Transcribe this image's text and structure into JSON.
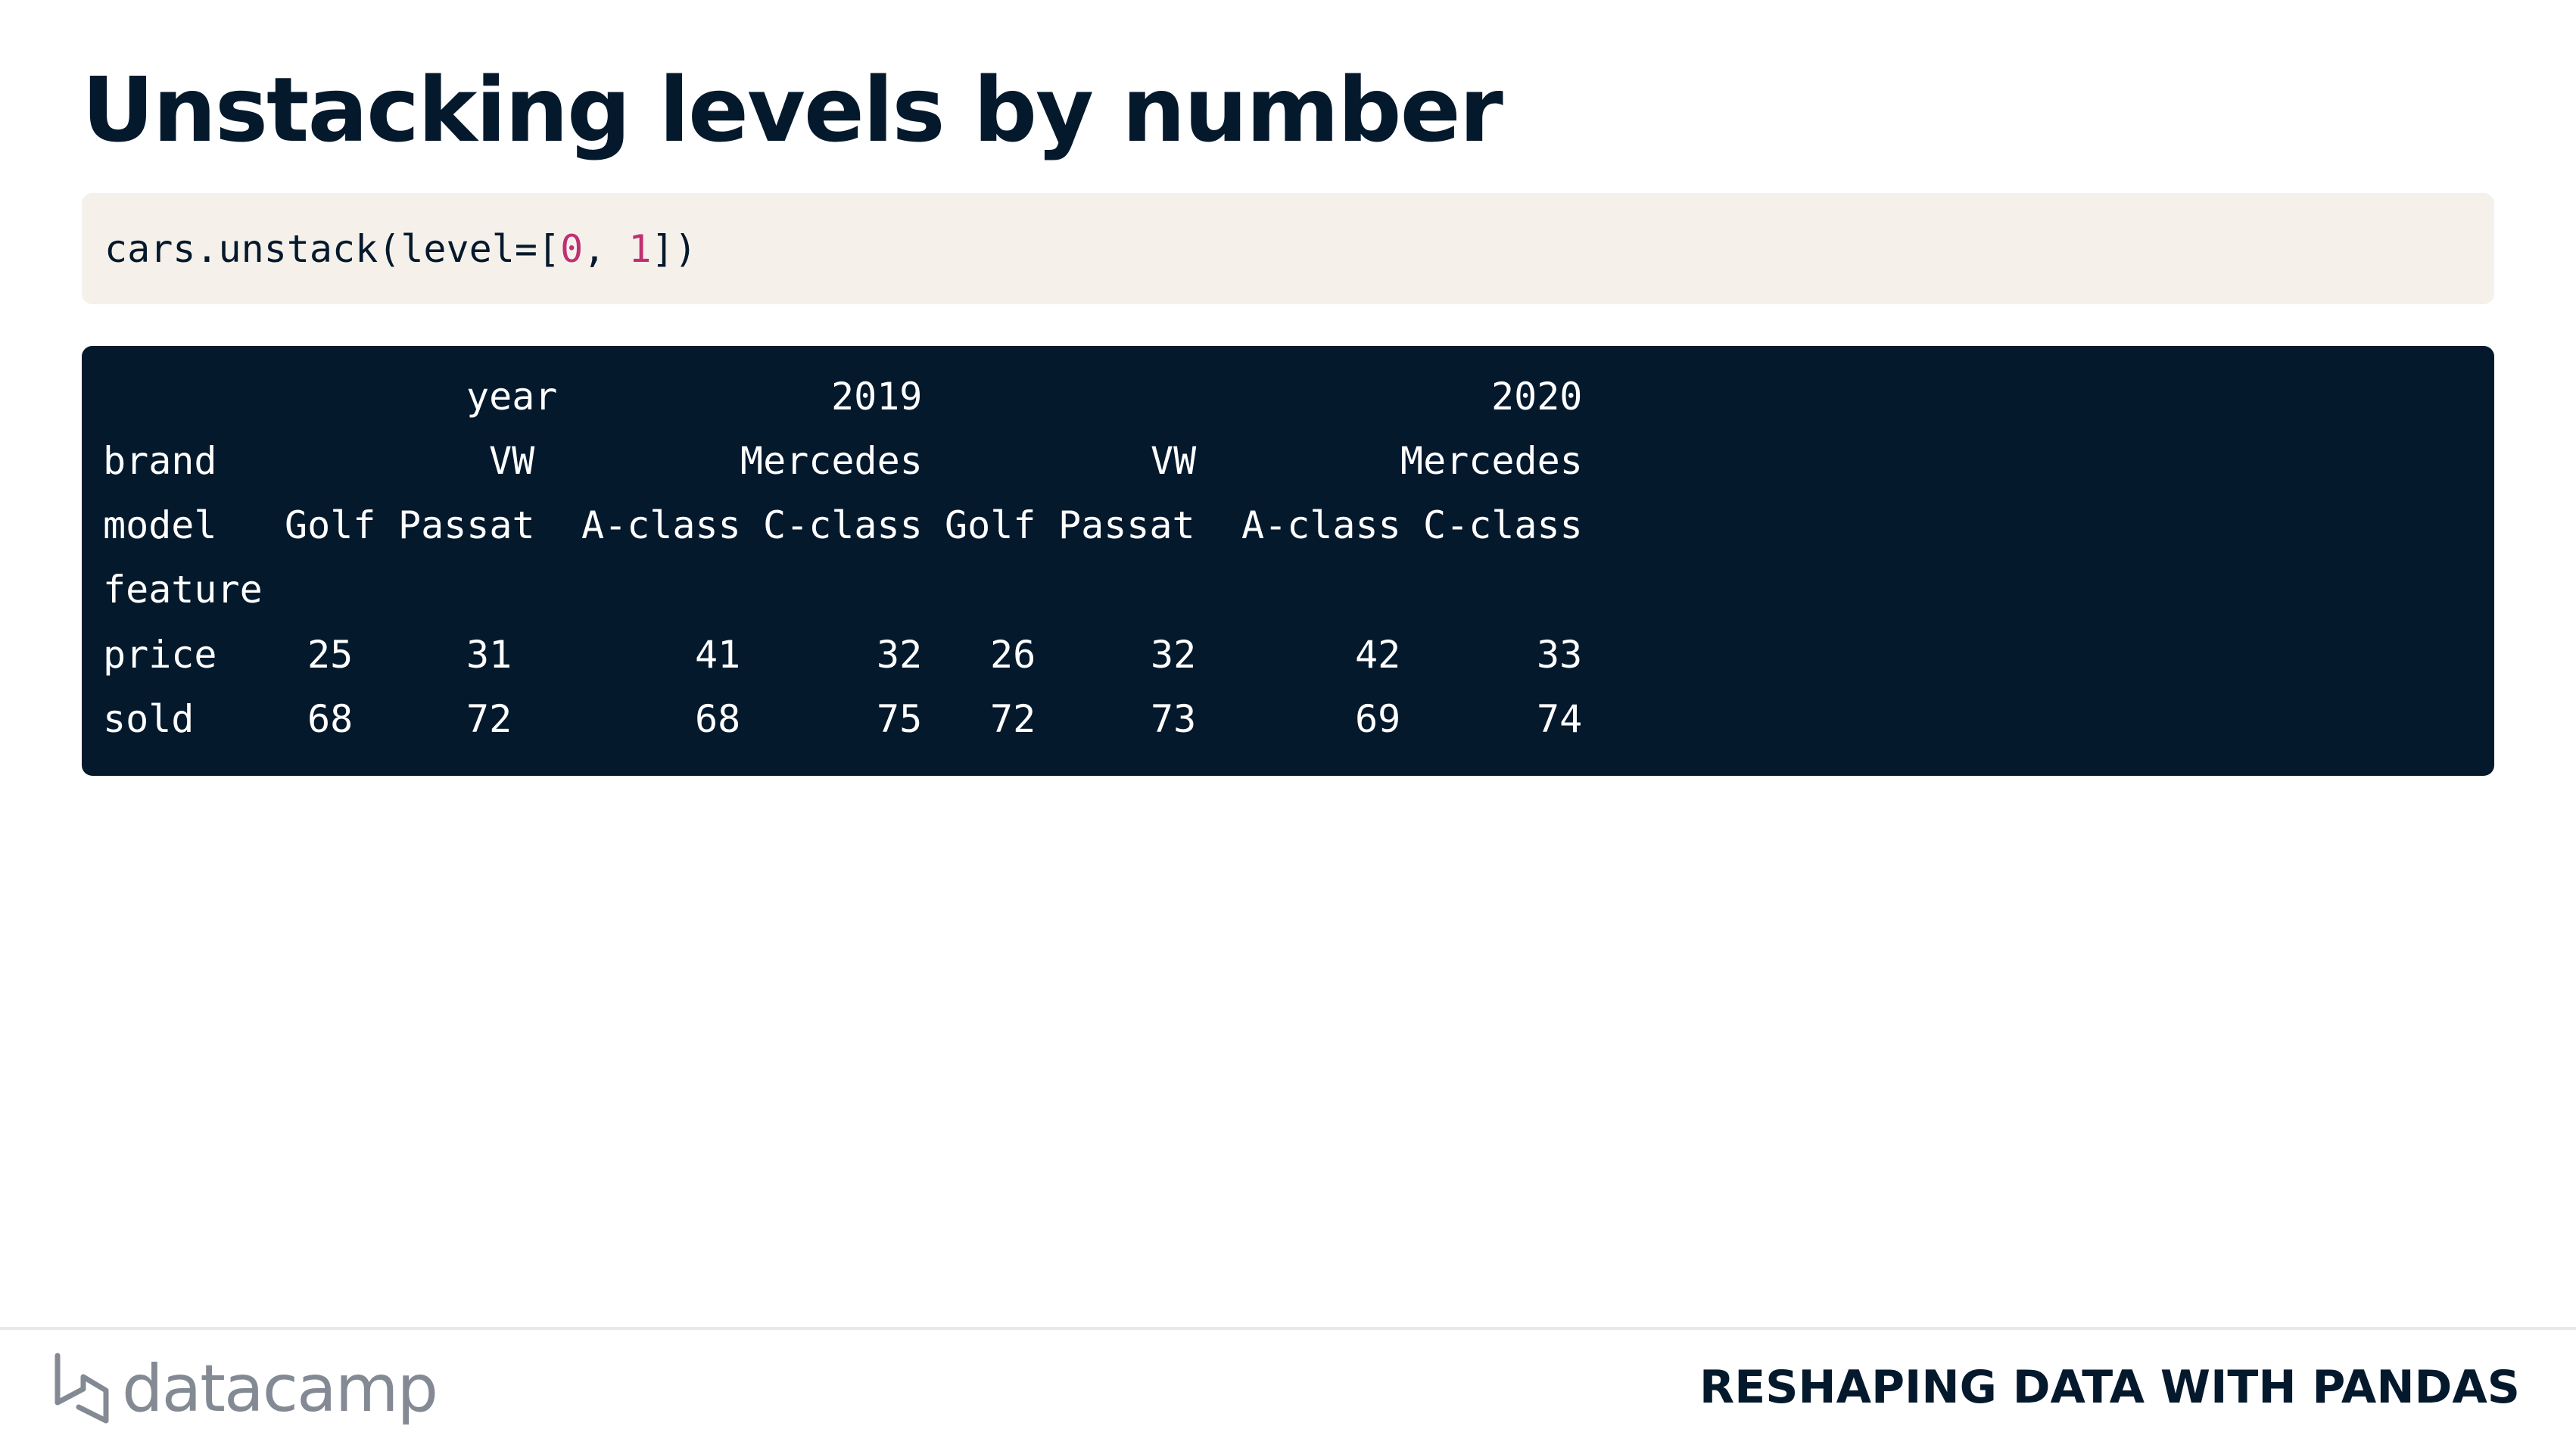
{
  "slide": {
    "title": "Unstacking levels by number",
    "course": "RESHAPING DATA WITH PANDAS",
    "brand": "datacamp",
    "brand_icon": "datacamp-logo-icon"
  },
  "code": {
    "prefix": "cars.unstack(level=[",
    "arg1": "0",
    "sep": ", ",
    "arg2": "1",
    "suffix": "])"
  },
  "output": {
    "header_year": {
      "label": "year",
      "y2019": "2019",
      "y2020": "2020"
    },
    "header_brand": {
      "label": "brand",
      "b1": "VW",
      "b2": "Mercedes",
      "b3": "VW",
      "b4": "Mercedes"
    },
    "header_model": {
      "label": "model",
      "m1": "Golf",
      "m2": "Passat",
      "m3": "A-class",
      "m4": "C-class",
      "m5": "Golf",
      "m6": "Passat",
      "m7": "A-class",
      "m8": "C-class"
    },
    "index_name": "feature",
    "rows": [
      {
        "label": "price",
        "values": [
          "25",
          "31",
          "41",
          "32",
          "26",
          "32",
          "42",
          "33"
        ]
      },
      {
        "label": "sold",
        "values": [
          "68",
          "72",
          "68",
          "75",
          "72",
          "73",
          "69",
          "74"
        ]
      }
    ]
  },
  "colors": {
    "title": "#05192d",
    "code_bg": "#f5f1ea",
    "output_bg": "#05192d",
    "number": "#bf3072",
    "logo": "#848a94"
  }
}
